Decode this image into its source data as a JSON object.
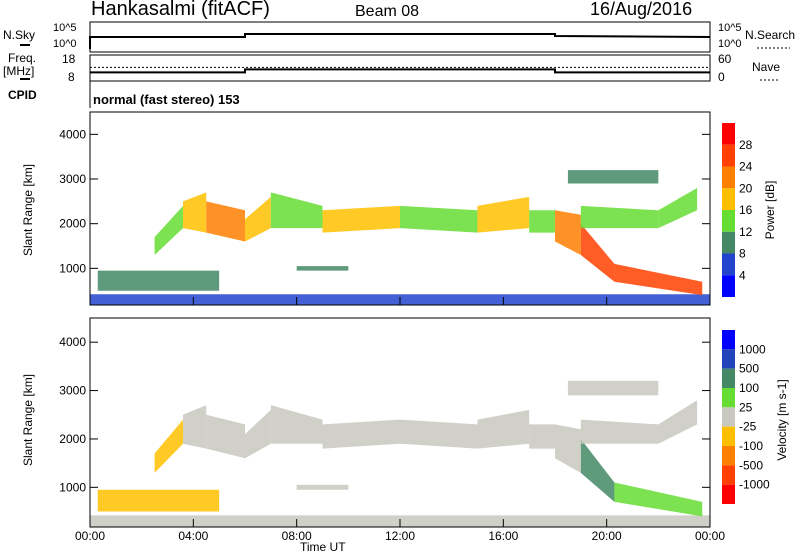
{
  "header": {
    "station": "Hankasalmi (fitACF)",
    "beam": "Beam 08",
    "date": "16/Aug/2016"
  },
  "top_panels": {
    "nsky_label": "N.Sky",
    "nsearch_label": "N.Search",
    "nsky_ticks": [
      "10^5",
      "10^0"
    ],
    "nsearch_ticks": [
      "10^5",
      "10^0"
    ],
    "freq_label1": "Freq.",
    "freq_label2": "[MHz]",
    "freq_ticks": [
      "18",
      "8"
    ],
    "nave_label": "Nave",
    "nave_ticks": [
      "60",
      "0"
    ],
    "cpid_label": "CPID",
    "cpid_value": "normal (fast stereo) 153"
  },
  "chart_data": {
    "type": "heatmap",
    "xlabel": "Time UT",
    "ylabel": "Slant Range [km]",
    "xlim": [
      0,
      24
    ],
    "ylim": [
      180,
      4500
    ],
    "xticks": [
      "00:00",
      "04:00",
      "08:00",
      "12:00",
      "16:00",
      "20:00",
      "00:00"
    ],
    "yticks": [
      "1000",
      "2000",
      "3000",
      "4000"
    ],
    "power_scale": {
      "label": "Power [dB]",
      "ticks": [
        "28",
        "24",
        "20",
        "16",
        "12",
        "8",
        "4"
      ],
      "colors": [
        "#ff0000",
        "#ff4000",
        "#ff7f00",
        "#ffbf00",
        "#66dd33",
        "#448866",
        "#2244cc",
        "#0000ff"
      ]
    },
    "velocity_scale": {
      "label": "Velocity [m s-1]",
      "ticks": [
        "1000",
        "500",
        "100",
        "25",
        "-25",
        "-100",
        "-500",
        "-1000"
      ],
      "colors": [
        "#0000ff",
        "#2244bb",
        "#448866",
        "#66dd33",
        "#c8c8c0",
        "#ffbf00",
        "#ff7f00",
        "#ff4000",
        "#ff0000"
      ]
    },
    "freq_series": [
      [
        0,
        11.3
      ],
      [
        6,
        11.3
      ],
      [
        6,
        12.6
      ],
      [
        18,
        12.6
      ],
      [
        18,
        11.3
      ],
      [
        24,
        11.3
      ]
    ],
    "nave_series": [
      [
        0,
        33
      ],
      [
        24,
        33
      ]
    ],
    "echoes_cols": [
      "t0",
      "t1",
      "rlo0",
      "rhi0",
      "rlo1",
      "rhi1",
      "power_dB",
      "velocity"
    ],
    "echoes": [
      [
        0,
        24,
        180,
        420,
        180,
        420,
        4,
        0
      ],
      [
        0.3,
        5,
        500,
        950,
        500,
        950,
        8,
        -30
      ],
      [
        2.5,
        3.6,
        1300,
        1700,
        1900,
        2400,
        12,
        -100
      ],
      [
        3.6,
        4.5,
        1900,
        2500,
        1800,
        2700,
        16,
        0
      ],
      [
        4.5,
        6,
        1800,
        2500,
        1600,
        2300,
        20,
        0
      ],
      [
        6,
        7,
        1600,
        2100,
        1900,
        2600,
        16,
        0
      ],
      [
        7,
        9,
        1900,
        2700,
        1900,
        2400,
        12,
        0
      ],
      [
        8,
        10,
        950,
        1050,
        950,
        1050,
        8,
        0
      ],
      [
        9,
        12,
        1800,
        2300,
        1900,
        2400,
        16,
        0
      ],
      [
        12,
        15,
        1900,
        2400,
        1800,
        2300,
        12,
        0
      ],
      [
        15,
        17,
        1800,
        2400,
        1900,
        2600,
        16,
        0
      ],
      [
        17,
        18,
        1800,
        2300,
        1800,
        2300,
        12,
        0
      ],
      [
        18,
        19,
        1600,
        2300,
        1300,
        2200,
        20,
        0
      ],
      [
        19,
        20.3,
        1300,
        2000,
        700,
        1100,
        24,
        100
      ],
      [
        19,
        22,
        1900,
        2400,
        1900,
        2300,
        12,
        0
      ],
      [
        22,
        23.5,
        1900,
        2300,
        2300,
        2800,
        12,
        0
      ],
      [
        20.3,
        23.7,
        700,
        1100,
        400,
        700,
        24,
        60
      ],
      [
        18.5,
        22,
        2900,
        3200,
        2900,
        3200,
        8,
        0
      ]
    ]
  }
}
